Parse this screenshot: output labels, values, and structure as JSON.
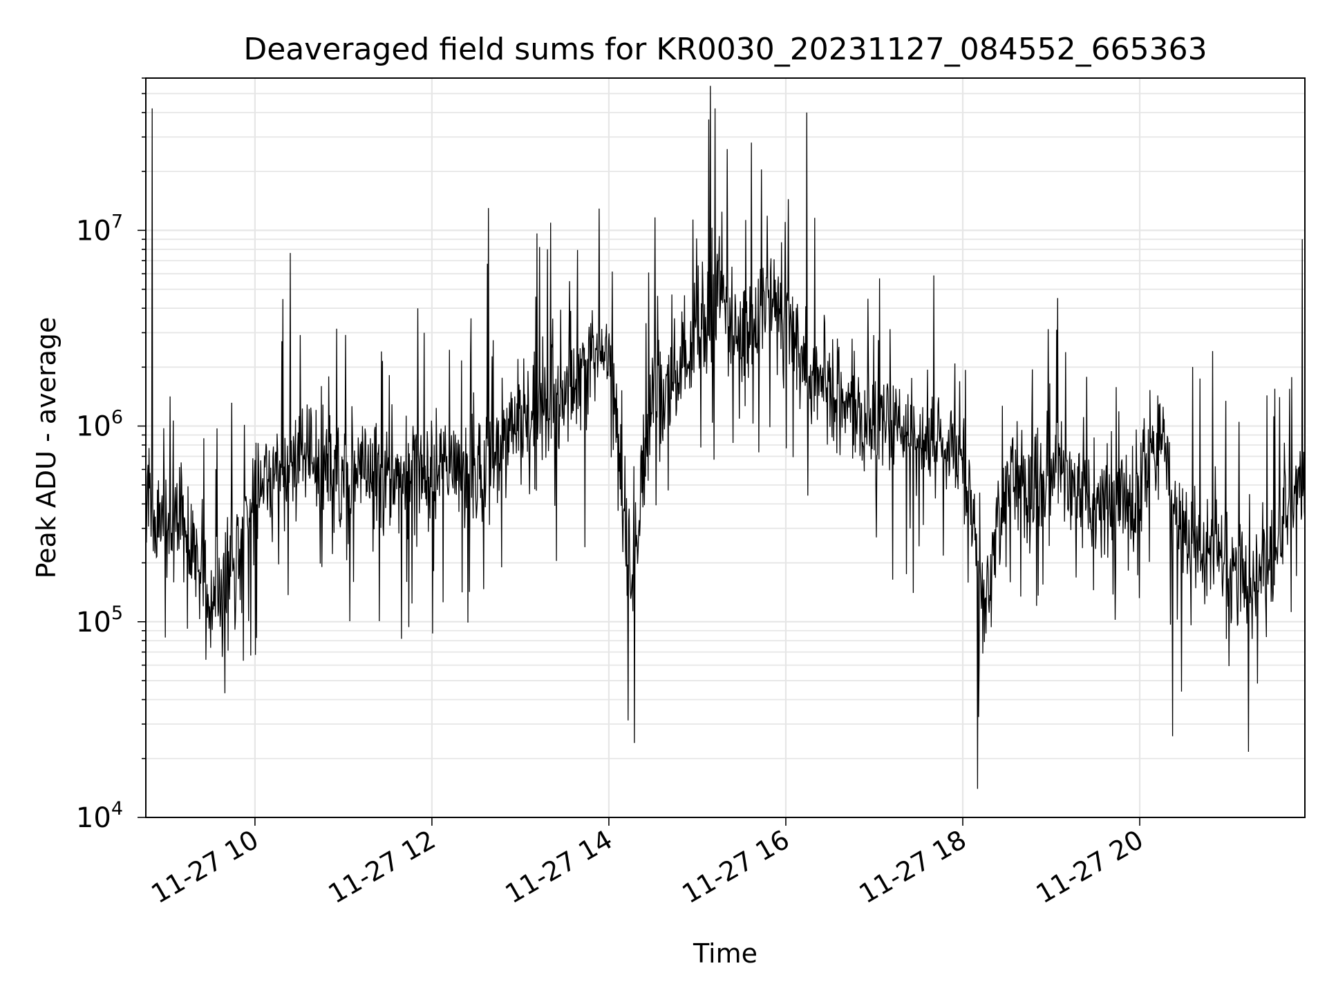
{
  "chart_data": {
    "type": "line",
    "title": "Deaveraged field sums for KR0030_20231127_084552_665363",
    "xlabel": "Time",
    "ylabel": "Peak ADU - average",
    "y_scale": "log",
    "ylim": [
      10000,
      60000000
    ],
    "xlim": [
      "2023-11-27 08:46",
      "2023-11-27 21:52"
    ],
    "x_ticks": [
      "11-27 10",
      "11-27 12",
      "11-27 14",
      "11-27 16",
      "11-27 18",
      "11-27 20"
    ],
    "y_ticks": [
      {
        "base": "10",
        "exp": "4",
        "value": 10000
      },
      {
        "base": "10",
        "exp": "5",
        "value": 100000
      },
      {
        "base": "10",
        "exp": "6",
        "value": 1000000
      },
      {
        "base": "10",
        "exp": "7",
        "value": 10000000
      }
    ],
    "grid": true,
    "line_color": "#000000",
    "series": [
      {
        "x": [
          "2023-11-27 08:46",
          "2023-11-27 09:00",
          "2023-11-27 09:15",
          "2023-11-27 09:30",
          "2023-11-27 09:45",
          "2023-11-27 10:00",
          "2023-11-27 10:15",
          "2023-11-27 10:30",
          "2023-11-27 10:45",
          "2023-11-27 11:00",
          "2023-11-27 11:15",
          "2023-11-27 11:30",
          "2023-11-27 11:45",
          "2023-11-27 12:00",
          "2023-11-27 12:15",
          "2023-11-27 12:30",
          "2023-11-27 12:45",
          "2023-11-27 13:00",
          "2023-11-27 13:15",
          "2023-11-27 13:30",
          "2023-11-27 13:45",
          "2023-11-27 14:00",
          "2023-11-27 14:15",
          "2023-11-27 14:30",
          "2023-11-27 14:45",
          "2023-11-27 15:00",
          "2023-11-27 15:15",
          "2023-11-27 15:30",
          "2023-11-27 15:45",
          "2023-11-27 16:00",
          "2023-11-27 16:15",
          "2023-11-27 16:30",
          "2023-11-27 16:45",
          "2023-11-27 17:00",
          "2023-11-27 17:15",
          "2023-11-27 17:30",
          "2023-11-27 17:45",
          "2023-11-27 18:00",
          "2023-11-27 18:15",
          "2023-11-27 18:30",
          "2023-11-27 18:45",
          "2023-11-27 19:00",
          "2023-11-27 19:15",
          "2023-11-27 19:30",
          "2023-11-27 19:45",
          "2023-11-27 20:00",
          "2023-11-27 20:15",
          "2023-11-27 20:30",
          "2023-11-27 20:45",
          "2023-11-27 21:00",
          "2023-11-27 21:15",
          "2023-11-27 21:30",
          "2023-11-27 21:45",
          "2023-11-27 21:52"
        ],
        "y": [
          400000,
          300000,
          250000,
          120000,
          200000,
          500000,
          600000,
          700000,
          650000,
          500000,
          600000,
          500000,
          650000,
          600000,
          700000,
          500000,
          800000,
          1000000,
          1200000,
          1500000,
          1800000,
          2500000,
          120000,
          1500000,
          1500000,
          3000000,
          4500000,
          3000000,
          4000000,
          4000000,
          2000000,
          1500000,
          1200000,
          1000000,
          1000000,
          900000,
          800000,
          700000,
          100000,
          600000,
          500000,
          600000,
          500000,
          350000,
          400000,
          500000,
          800000,
          300000,
          250000,
          200000,
          150000,
          180000,
          450000,
          500000
        ]
      }
    ],
    "annotated_points": [
      {
        "x": "2023-11-27 08:50",
        "y": 42000000
      },
      {
        "x": "2023-11-27 12:38",
        "y": 13000000
      },
      {
        "x": "2023-11-27 14:17",
        "y": 24000
      },
      {
        "x": "2023-11-27 15:12",
        "y": 42000000
      },
      {
        "x": "2023-11-27 16:14",
        "y": 40000000
      },
      {
        "x": "2023-11-27 18:10",
        "y": 14000
      },
      {
        "x": "2023-11-27 20:22",
        "y": 26000
      },
      {
        "x": "2023-11-27 21:50",
        "y": 9000000
      }
    ]
  }
}
